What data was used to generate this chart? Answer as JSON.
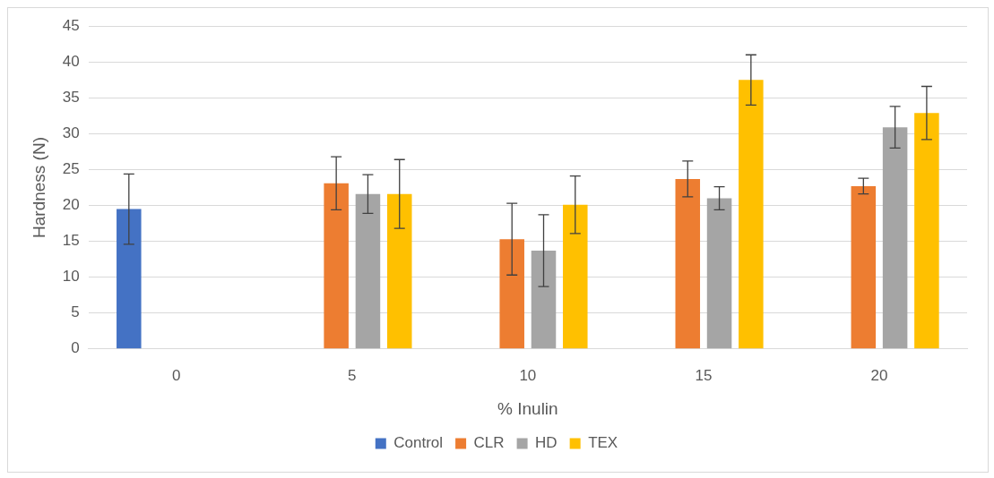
{
  "chart_data": {
    "type": "bar",
    "xlabel": "% Inulin",
    "ylabel": "Hardness (N)",
    "categories": [
      "0",
      "5",
      "10",
      "15",
      "20"
    ],
    "series": [
      {
        "name": "Control",
        "color": "#4472c4",
        "values": [
          19.5,
          null,
          null,
          null,
          null
        ],
        "errors": [
          4.9,
          null,
          null,
          null,
          null
        ]
      },
      {
        "name": "CLR",
        "color": "#ed7d31",
        "values": [
          null,
          23.1,
          15.3,
          23.7,
          22.7
        ],
        "errors": [
          null,
          3.7,
          5,
          2.5,
          1.1
        ]
      },
      {
        "name": "HD",
        "color": "#a5a5a5",
        "values": [
          null,
          21.6,
          13.7,
          21,
          30.9
        ],
        "errors": [
          null,
          2.7,
          5,
          1.6,
          2.9
        ]
      },
      {
        "name": "TEX",
        "color": "#ffc000",
        "values": [
          null,
          21.6,
          20.1,
          37.5,
          32.9
        ],
        "errors": [
          null,
          4.8,
          4,
          3.5,
          3.7
        ]
      }
    ],
    "ylim": [
      0,
      45
    ],
    "yticks": [
      0,
      5,
      10,
      15,
      20,
      25,
      30,
      35,
      40,
      45
    ],
    "grid": "y",
    "legend": "bottom"
  }
}
